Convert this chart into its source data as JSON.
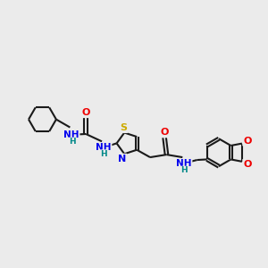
{
  "background_color": "#ebebeb",
  "bond_color": "#1a1a1a",
  "atom_colors": {
    "N": "#0000ee",
    "O": "#ee0000",
    "S": "#ccaa00",
    "H_label": "#008888"
  },
  "figure_size": [
    3.0,
    3.0
  ],
  "dpi": 100,
  "xlim": [
    0,
    10
  ],
  "ylim": [
    2,
    8
  ]
}
